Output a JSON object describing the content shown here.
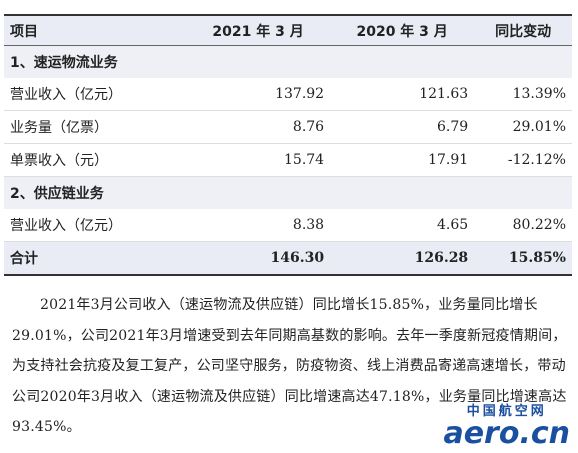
{
  "table": {
    "header": [
      "项目",
      "2021 年 3 月",
      "2020 年 3 月",
      "同比变动"
    ],
    "rows": [
      [
        "1、速运物流业务"
      ],
      [
        "营业收入（亿元）",
        "137.92",
        "121.63",
        "13.39%"
      ],
      [
        "业务量（亿票）",
        "8.76",
        "6.79",
        "29.01%"
      ],
      [
        "单票收入（元）",
        "15.74",
        "17.91",
        "-12.12%"
      ],
      [
        "2、供应链业务"
      ],
      [
        "营业收入（亿元）",
        "8.38",
        "4.65",
        "80.22%"
      ],
      [
        "合计",
        "146.30",
        "126.28",
        "15.85%"
      ]
    ]
  },
  "paragraph": "2021年3月公司收入（速运物流及供应链）同比增长15.85%，业务量同比增长29.01%，公司2021年3月增速受到去年同期高基数的影响。去年一季度新冠疫情期间，为支持社会抗疫及复工复产，公司坚守服务，防疫物资、线上消费品寄递高速增长，带动公司2020年3月收入（速运物流及供应链）同比增速高达47.18%，业务量同比增速高达93.45%。",
  "watermark": {
    "cn": "中国航空网",
    "en": "aero.cn"
  }
}
